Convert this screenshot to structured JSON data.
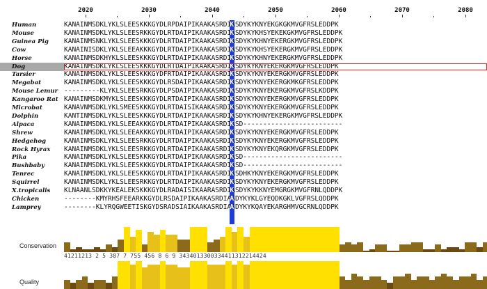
{
  "ruler": {
    "positions": [
      "2020",
      "2030",
      "2040",
      "2050",
      "2060",
      "2070",
      "2080"
    ]
  },
  "alignment": {
    "highlighted_species": "Dog",
    "highlighted_column_color": "#1f3cd6",
    "selection_color": "#e0222a",
    "rows": [
      {
        "species": "Human",
        "seq": "KANAINMSDKLYKLSLEESKKKGYDLRPDAIPIKAAKASRDIASDYKYKNYEKGKGKMVGFRSLEDDPK"
      },
      {
        "species": "Mouse",
        "seq": "KANAINMSDKLYKLSLEESRKKGYDLRTDAIPIKAAKASRDIASDYKYKHSYEKEKGKMVGFRSLEDDPK"
      },
      {
        "species": "Guinea Pig",
        "seq": "KANAINMSNKLYKLSLEESKKKGYDLRTDAIPIKAAKASRDIASDYKYKHNYEKERGKMVGFRSLEDDPK"
      },
      {
        "species": "Cow",
        "seq": "KANAINISDKLYKLSLEEAKKKGYDLRTDAIPIKAAKASRDIASDYKYKHSYEKERGKMVGFRSLEDDPK"
      },
      {
        "species": "Horse",
        "seq": "KANAINMSDKHYKLSLEESKKKGYDLRTDAIPIKAAKASRDIASDYKYKHNYEKERGKMVGFRSLEDDPK"
      },
      {
        "species": "Dog",
        "seq": "KANAINMSDKLYKLSLEESKKKGYDLRTDAIPIKAAKASRDIASDYKYKNYEKERGKMVGFRSLEDDPK"
      },
      {
        "species": "Tarsier",
        "seq": "KANAINMSDKLYKLSLEESKKKGYDFRTDAIPIKAAKASRDIASDYKYKNYEKERGKMVGFRSLEDDPK"
      },
      {
        "species": "Megabat",
        "seq": "KANAINMSDKLYKLSLEESKKKGYDLRSDAIPIKAAKASRDIASDYKYKNYEKERGKMKGFRSLEDDPK"
      },
      {
        "species": "Mouse Lemur",
        "seq": "---------KLYKLSLEESRKKGYDLPSDAIPIKAAKASRDIASDYKYKNYEKERGKMVGFRSLKDDPK"
      },
      {
        "species": "Kangaroo Rat",
        "seq": "KANAINMSDKMYKLSLEESKKKGYDLRTDAIPIKAAKASRDIASDYKYKNYEKERGKMVGFRSLEDDPK"
      },
      {
        "species": "Microbat",
        "seq": "KANAVNMSDKLYKLSMEESKKKGYDLRTDAISIKAAKASRDIASDYKYKNYEKERGKMVGFRSLEDDPK"
      },
      {
        "species": "Dolphin",
        "seq": "KANTINMSDKLYKLSLEESKKKGYDLRTDAIPIKAAKASRDIASDYKYKHNYEKERGKMVGFRSLEDDPK"
      },
      {
        "species": "Alpaca",
        "seq": "KANAINMSDKLYKLSLEEAKKKGYDLRTDAIPIKAAKASRDIASD-------------------------"
      },
      {
        "species": "Shrew",
        "seq": "KANAINMSDKLYKLSLEEAKKKGYDLRTDAIPIKAAKASRDIASDYKYKNYEKERGKMVGFRSLEDDPK"
      },
      {
        "species": "Hedgehog",
        "seq": "KANAINMSDKLYKLSLEESRKKGYDLRTDAIPIKAAKASRDIASDYKYKNYEKERGKMVGFRSLEDDPK"
      },
      {
        "species": "Rock Hyrax",
        "seq": "KANAINMSDKLYKLSLEESRKKGYDLRTDAIPIKAAKASRDIASDYKYKNYEKQRGKMVGFRSLEDDPK"
      },
      {
        "species": "Pika",
        "seq": "KANAINMSDKLYKLSLEESKKKGYDLRTDAIPIKAAKASRDIASD-------------------------"
      },
      {
        "species": "Bushbaby",
        "seq": "KANAINMSDKLYKLSLEESKKKGYDLRTDAIPIKAAKASRDIASD-------------------------"
      },
      {
        "species": "Tenrec",
        "seq": "KANAINMSDKLYKLSLEESKKKGYDLRTDAIPIKAAKASRDIASDHKYKNYEKERGKMVGFRSLEDDPK"
      },
      {
        "species": "Squirrel",
        "seq": "KANAINMSDKLYKLSLEESRKKGYDLRTDAIPIKAAKASRDIASDYKYKNYEKERGKMVGFRSLEDDPK"
      },
      {
        "species": "X.tropicalis",
        "seq": "KLNAANLSDKKYKEALEKSKKKGYDLRADAISIKAARASRDIASDYKYKKNYEMGRGKMVGFRNLQDDPK"
      },
      {
        "species": "Chicken",
        "seq": "--------KMYRHSFEEARKKGYDLRSDAIPIKAAKASRDIASDYKYKLGYEQDKGKLVGFRSLQDDPK"
      },
      {
        "species": "Lamprey",
        "seq": "--------KLYRQGWEETISKGYDSRADSIAIKAAKASRDIASDYKYKQAYEKARGHMVGCRNLQDDPK"
      }
    ]
  },
  "annotations": {
    "conservation_label": "Conservation",
    "quality_label": "Quality",
    "conservation_scores": "41211213 2 5 387 7 755 456 8 6 9 3434013300334411312214424",
    "colors": {
      "high": "#ffe000",
      "mid": "#e8c01a",
      "low": "#8b6a1c",
      "dark": "#6b4a12"
    },
    "conservation_values": [
      4,
      1,
      2,
      1,
      1,
      2,
      1,
      3,
      2,
      5,
      10,
      6,
      9,
      3,
      8,
      7,
      9,
      7,
      7,
      5,
      5,
      10,
      10,
      10,
      4,
      5,
      6,
      10,
      8,
      10,
      6,
      10,
      10,
      10,
      10,
      10,
      10,
      10,
      10,
      10,
      10,
      10,
      10,
      10,
      10,
      10,
      3,
      4,
      3,
      4,
      0,
      1,
      3,
      3,
      0,
      0,
      3,
      3,
      4,
      4,
      1,
      1,
      3,
      1,
      2,
      2,
      1,
      4,
      4,
      2,
      4
    ],
    "quality_values": [
      3,
      2,
      3,
      4,
      2,
      3,
      3,
      2,
      4,
      9,
      9,
      8,
      9,
      7,
      8,
      8,
      9,
      8,
      8,
      7,
      7,
      9,
      9,
      9,
      8,
      8,
      8,
      9,
      8,
      9,
      8,
      9,
      9,
      9,
      9,
      9,
      9,
      9,
      9,
      9,
      9,
      9,
      9,
      9,
      9,
      9,
      4,
      3,
      5,
      4,
      3,
      4,
      4,
      3,
      2,
      4,
      4,
      5,
      3,
      4,
      4,
      3,
      4,
      5,
      4,
      3,
      4,
      4,
      5,
      3,
      4
    ]
  }
}
